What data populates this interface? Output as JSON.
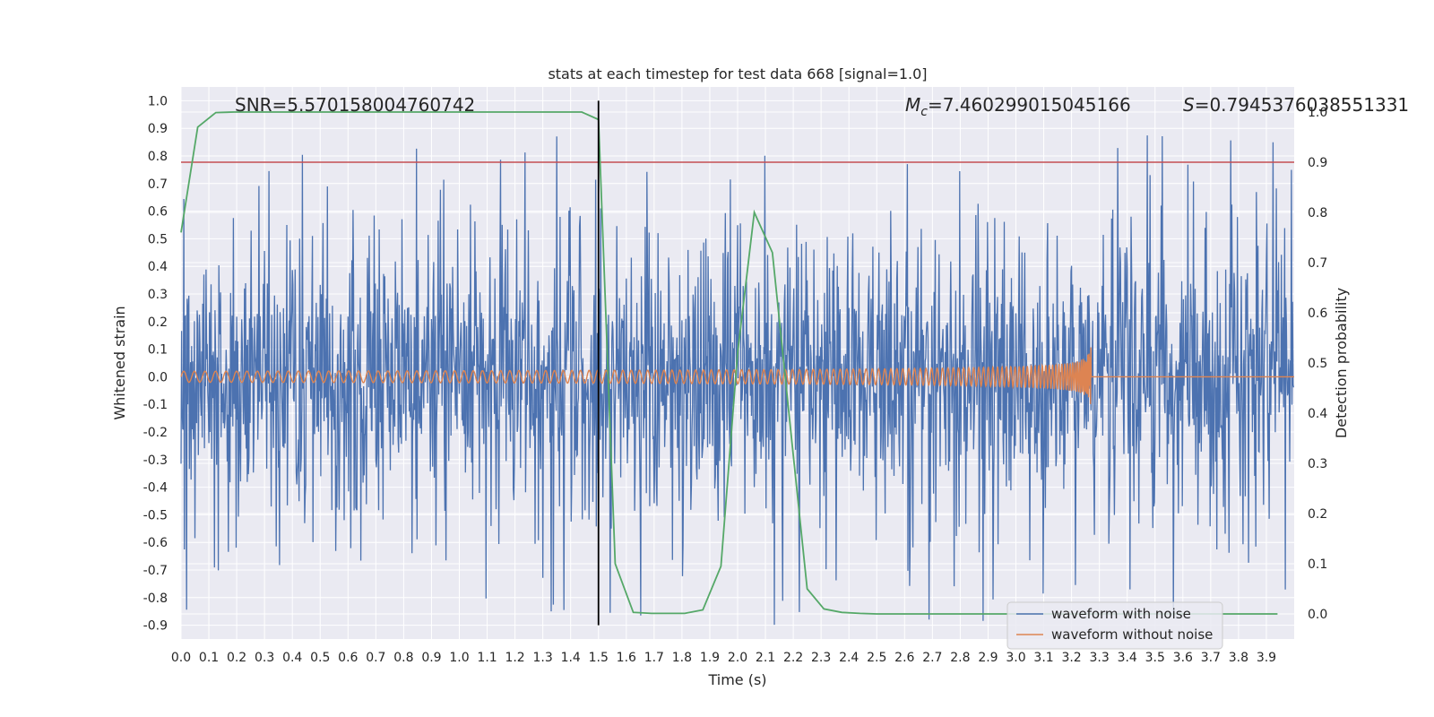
{
  "chart_data": {
    "type": "line",
    "title": "stats at each timestep for test data 668 [signal=1.0]",
    "xlabel": "Time (s)",
    "ylabel_left": "Whitened strain",
    "ylabel_right": "Detection probability",
    "xlim": [
      0.0,
      4.0
    ],
    "ylim_left": [
      -0.95,
      1.05
    ],
    "ylim_right": [
      -0.05,
      1.05
    ],
    "x_ticks": [
      "0.0",
      "0.1",
      "0.2",
      "0.3",
      "0.4",
      "0.5",
      "0.6",
      "0.7",
      "0.8",
      "0.9",
      "1.0",
      "1.1",
      "1.2",
      "1.3",
      "1.4",
      "1.5",
      "1.6",
      "1.7",
      "1.8",
      "1.9",
      "2.0",
      "2.1",
      "2.2",
      "2.3",
      "2.4",
      "2.5",
      "2.6",
      "2.7",
      "2.8",
      "2.9",
      "3.0",
      "3.1",
      "3.2",
      "3.3",
      "3.4",
      "3.5",
      "3.6",
      "3.7",
      "3.8",
      "3.9"
    ],
    "y_ticks_left": [
      "1.0",
      "0.9",
      "0.8",
      "0.7",
      "0.6",
      "0.5",
      "0.4",
      "0.3",
      "0.2",
      "0.1",
      "0.0",
      "-0.1",
      "-0.2",
      "-0.3",
      "-0.4",
      "-0.5",
      "-0.6",
      "-0.7",
      "-0.8",
      "-0.9"
    ],
    "y_ticks_right": [
      "1.0",
      "0.9",
      "0.8",
      "0.7",
      "0.6",
      "0.5",
      "0.4",
      "0.3",
      "0.2",
      "0.1",
      "0.0"
    ],
    "grid": true,
    "legend_position": "bottom-right",
    "annotations": {
      "snr": "SNR=5.570158004760742",
      "mc_symbol": "M",
      "mc_sub": "c",
      "mc_value": "=7.460299015045166",
      "s_symbol": "S",
      "s_value": "=0.7945376038551331"
    },
    "threshold": {
      "value": 0.9,
      "axis": "right",
      "color": "#c44e52"
    },
    "marker_time": 1.5,
    "series": [
      {
        "name": "waveform with noise",
        "color": "#4c72b0",
        "axis": "left",
        "kind": "noise",
        "amplitude": 0.9,
        "duration": 4.0,
        "samples": 2000
      },
      {
        "name": "waveform without noise",
        "color": "#dd8452",
        "axis": "left",
        "kind": "chirp",
        "merger_time": 3.27,
        "base_frequency": 26,
        "base_amplitude": 0.02,
        "peak_amplitude": 0.19
      },
      {
        "name": "detection probability",
        "color": "#55a868",
        "axis": "right",
        "x": [
          0.0,
          0.06,
          0.125,
          0.19,
          0.25,
          0.31,
          0.375,
          0.44,
          0.5,
          0.56,
          0.625,
          0.69,
          0.75,
          0.81,
          0.875,
          0.94,
          1.0,
          1.06,
          1.125,
          1.19,
          1.25,
          1.31,
          1.375,
          1.44,
          1.5,
          1.56,
          1.625,
          1.69,
          1.75,
          1.81,
          1.875,
          1.94,
          2.0,
          2.06,
          2.125,
          2.19,
          2.25,
          2.31,
          2.375,
          2.44,
          2.5,
          2.56,
          2.625,
          2.69,
          2.75,
          2.81,
          2.875,
          2.94,
          3.0,
          3.06,
          3.125,
          3.19,
          3.25,
          3.31,
          3.375,
          3.44,
          3.5,
          3.56,
          3.625,
          3.69,
          3.75,
          3.81,
          3.875,
          3.94
        ],
        "values": [
          0.76,
          0.97,
          0.999,
          1.0,
          1.0,
          1.0,
          1.0,
          1.0,
          1.0,
          1.0,
          1.0,
          1.0,
          1.0,
          1.0,
          1.0,
          1.0,
          1.0,
          1.0,
          1.0,
          1.0,
          1.0,
          1.0,
          1.0,
          1.0,
          0.985,
          0.1,
          0.003,
          0.001,
          0.001,
          0.001,
          0.008,
          0.095,
          0.52,
          0.8,
          0.72,
          0.37,
          0.05,
          0.01,
          0.003,
          0.001,
          0.0,
          0.0,
          0.0,
          0.0,
          0.0,
          0.0,
          0.0,
          0.0,
          0.0,
          0.0,
          0.0,
          0.0,
          0.0,
          0.0,
          0.0,
          0.0,
          0.0,
          0.0,
          0.0,
          0.0,
          0.0,
          0.0,
          0.0,
          0.0
        ]
      }
    ]
  },
  "legend": {
    "items": [
      {
        "label": "waveform with noise",
        "color": "#4c72b0"
      },
      {
        "label": "waveform without noise",
        "color": "#dd8452"
      }
    ]
  }
}
